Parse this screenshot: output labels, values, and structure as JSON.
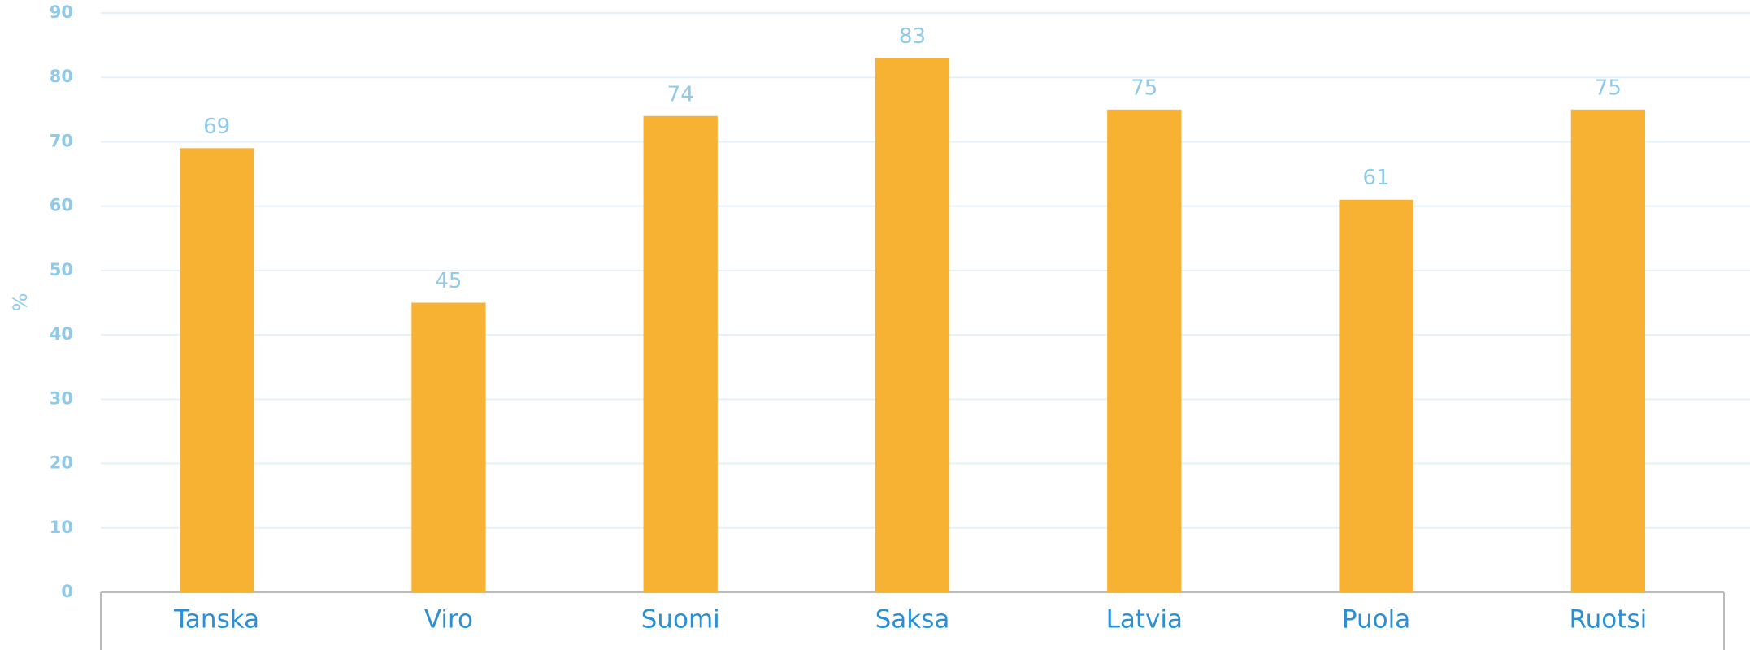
{
  "chart_data": {
    "type": "bar",
    "y_label": "%",
    "categories": [
      "Tanska",
      "Viro",
      "Suomi",
      "Saksa",
      "Latvia",
      "Puola",
      "Ruotsi"
    ],
    "values": [
      69,
      45,
      74,
      83,
      75,
      61,
      75
    ],
    "color": "#f7b133",
    "ylim": [
      0,
      90
    ],
    "yticks": [
      0,
      10,
      20,
      30,
      40,
      50,
      60,
      70,
      80,
      90
    ],
    "grid": true
  }
}
